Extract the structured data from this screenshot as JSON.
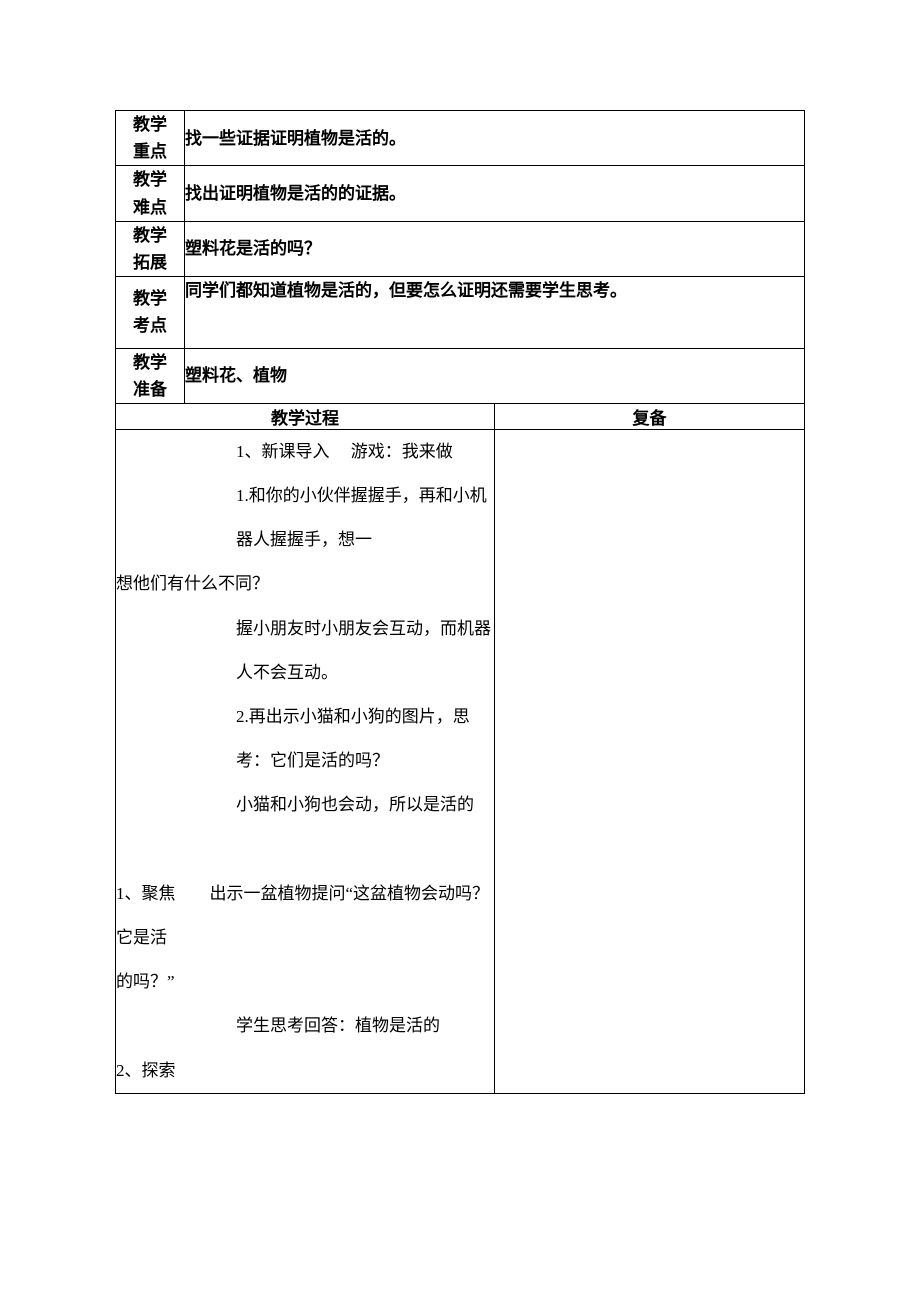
{
  "rows": {
    "key_point": {
      "label1": "教学",
      "label2": "重点",
      "content": "找一些证据证明植物是活的。"
    },
    "difficulty": {
      "label1": "教学",
      "label2": "难点",
      "content": "找出证明植物是活的的证据。"
    },
    "extension": {
      "label1": "教学",
      "label2": "拓展",
      "content": "塑料花是活的吗？"
    },
    "exam_point": {
      "label1": "教学",
      "label2": "考点",
      "content": "同学们都知道植物是活的，但要怎么证明还需要学生思考。"
    },
    "preparation": {
      "label1": "教学",
      "label2": "准备",
      "content": "塑料花、植物"
    }
  },
  "process": {
    "header": "教学过程",
    "fubei_header": "复备",
    "lines": {
      "l1": "1、新课导入  游戏：我来做",
      "l2a": "1.和你的小伙伴握握手，再和小机器人握握手，想一",
      "l2b": "想他们有什么不同？",
      "l3": "握小朋友时小朋友会互动，而机器人不会互动。",
      "l4": "2.再出示小猫和小狗的图片，思考：它们是活的吗？",
      "l5": "小猫和小狗也会动，所以是活的",
      "l6a": "1、聚焦  出示一盆植物提问“这盆植物会动吗？它是活",
      "l6b": "的吗？”",
      "l7": "学生思考回答：植物是活的",
      "l8": "2、探索"
    }
  }
}
